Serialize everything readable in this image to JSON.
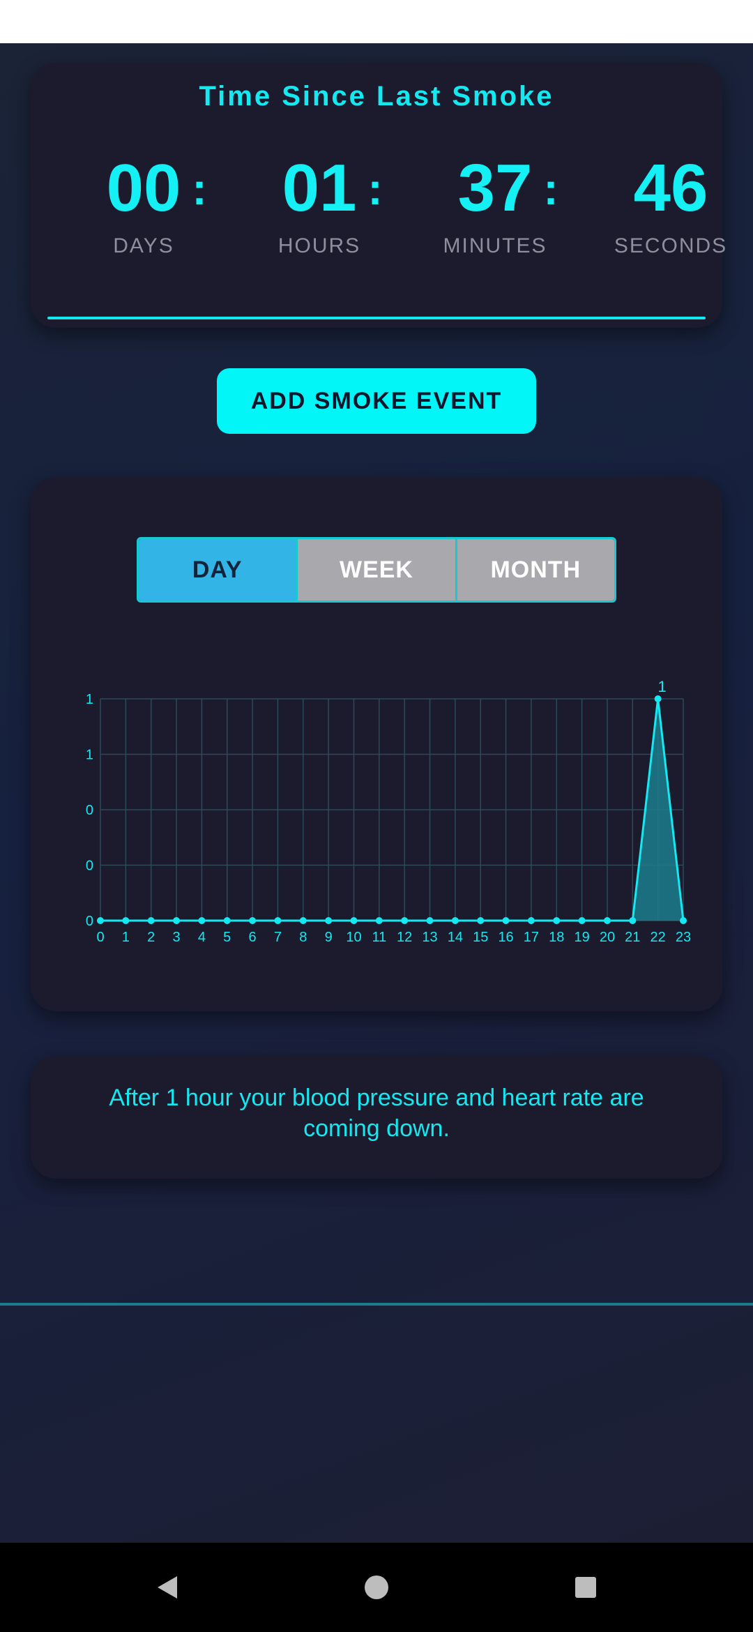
{
  "timer": {
    "title": "Time Since Last Smoke",
    "units": [
      {
        "value": "00",
        "label": "DAYS"
      },
      {
        "value": "01",
        "label": "HOURS"
      },
      {
        "value": "37",
        "label": "MINUTES"
      },
      {
        "value": "46",
        "label": "SECONDS"
      }
    ],
    "separator": ":"
  },
  "actions": {
    "add_smoke_event_label": "ADD SMOKE EVENT"
  },
  "range_selector": {
    "options": [
      "DAY",
      "WEEK",
      "MONTH"
    ],
    "selected": "DAY"
  },
  "chart_data": {
    "type": "area",
    "x": [
      0,
      1,
      2,
      3,
      4,
      5,
      6,
      7,
      8,
      9,
      10,
      11,
      12,
      13,
      14,
      15,
      16,
      17,
      18,
      19,
      20,
      21,
      22,
      23
    ],
    "series": [
      {
        "values": [
          0,
          0,
          0,
          0,
          0,
          0,
          0,
          0,
          0,
          0,
          0,
          0,
          0,
          0,
          0,
          0,
          0,
          0,
          0,
          0,
          0,
          0,
          1,
          0
        ]
      }
    ],
    "y_tick_labels": [
      "0",
      "0",
      "0",
      "1",
      "1"
    ],
    "ylim": [
      0,
      1
    ],
    "data_labels": [
      {
        "x": 22,
        "text": "1"
      }
    ],
    "title": "",
    "xlabel": "",
    "ylabel": "",
    "grid": true,
    "colors": {
      "line": "#14e8f0",
      "fill": "#1b7c8c",
      "grid": "#2b4a58",
      "text": "#14e8f0"
    }
  },
  "info": {
    "message": "After 1 hour your blood pressure and heart rate are coming down."
  },
  "nav": {
    "icons": [
      "back-icon",
      "home-icon",
      "recents-icon"
    ]
  },
  "colors": {
    "accent": "#14f0f4",
    "card": "#1c1b2e",
    "button": "#02f6f8",
    "selected_tab": "#32b4e6",
    "unselected_tab": "#a9a9ad"
  }
}
